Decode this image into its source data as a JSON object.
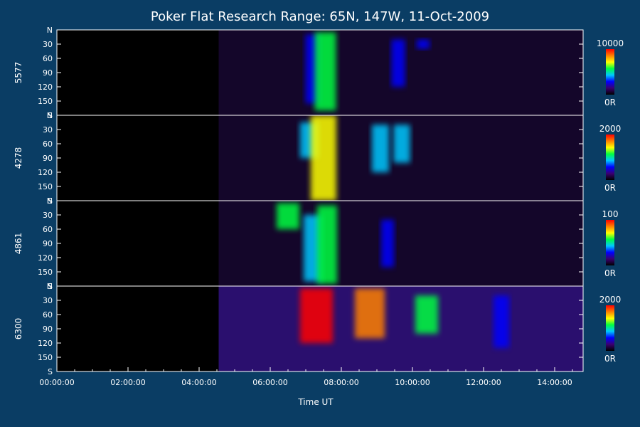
{
  "chart_data": {
    "type": "heatmap",
    "title": "Poker Flat Research Range: 65N, 147W, 11-Oct-2009",
    "xlabel": "Time UT",
    "x_ticks": [
      "00:00:00",
      "02:00:00",
      "04:00:00",
      "06:00:00",
      "08:00:00",
      "10:00:00",
      "12:00:00",
      "14:00:00"
    ],
    "x_range_hours": [
      0,
      14.8
    ],
    "data_start_hour": 4.55,
    "y_ticks": [
      "N",
      "30",
      "60",
      "90",
      "120",
      "150",
      "S"
    ],
    "y_range_deg": [
      0,
      180
    ],
    "colormap": [
      "#000000",
      "#3a0070",
      "#0000ff",
      "#00c8ff",
      "#00ff40",
      "#ffff00",
      "#ff8000",
      "#ff0000"
    ],
    "panels": [
      {
        "name": "5577",
        "cb_max": "10000",
        "cb_min": "0R",
        "features": [
          {
            "t": 7.2,
            "lat_from": 10,
            "lat_to": 155,
            "intensity": 0.32
          },
          {
            "t": 7.55,
            "lat_from": 5,
            "lat_to": 170,
            "intensity": 0.55
          },
          {
            "t": 9.6,
            "lat_from": 20,
            "lat_to": 120,
            "intensity": 0.28
          },
          {
            "t": 10.3,
            "lat_from": 20,
            "lat_to": 40,
            "intensity": 0.25
          }
        ]
      },
      {
        "name": "4278",
        "cb_max": "2000",
        "cb_min": "0R",
        "features": [
          {
            "t": 7.1,
            "lat_from": 15,
            "lat_to": 90,
            "intensity": 0.45
          },
          {
            "t": 7.5,
            "lat_from": 0,
            "lat_to": 180,
            "intensity": 0.7
          },
          {
            "t": 9.1,
            "lat_from": 20,
            "lat_to": 120,
            "intensity": 0.4
          },
          {
            "t": 9.7,
            "lat_from": 20,
            "lat_to": 100,
            "intensity": 0.38
          }
        ]
      },
      {
        "name": "4861",
        "cb_max": "100",
        "cb_min": "0R",
        "features": [
          {
            "t": 6.5,
            "lat_from": 5,
            "lat_to": 60,
            "intensity": 0.6
          },
          {
            "t": 7.2,
            "lat_from": 30,
            "lat_to": 170,
            "intensity": 0.45
          },
          {
            "t": 7.6,
            "lat_from": 10,
            "lat_to": 175,
            "intensity": 0.5
          },
          {
            "t": 9.3,
            "lat_from": 40,
            "lat_to": 140,
            "intensity": 0.25
          }
        ]
      },
      {
        "name": "6300",
        "cb_max": "2000",
        "cb_min": "0R",
        "features": [
          {
            "t": 7.3,
            "lat_from": 5,
            "lat_to": 120,
            "intensity": 0.95
          },
          {
            "t": 8.8,
            "lat_from": 5,
            "lat_to": 110,
            "intensity": 0.85
          },
          {
            "t": 10.4,
            "lat_from": 20,
            "lat_to": 100,
            "intensity": 0.6
          },
          {
            "t": 12.5,
            "lat_from": 20,
            "lat_to": 130,
            "intensity": 0.35
          }
        ]
      }
    ]
  }
}
